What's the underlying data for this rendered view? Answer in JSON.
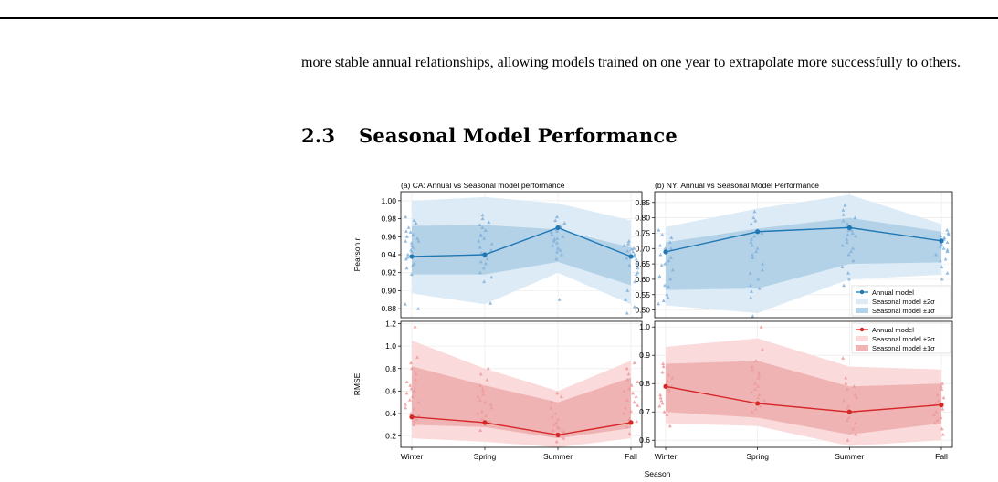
{
  "body_text": "more stable annual relationships, allowing models trained on one year to extrapolate more successfully to others.",
  "section": {
    "number": "2.3",
    "title": "Seasonal Model Performance"
  },
  "figure": {
    "shared_xlabel": "Season"
  },
  "colors": {
    "blue": "#1f77b4",
    "blue_band2": "#dcebf6",
    "blue_band1": "#b3d2e8",
    "blue_scatter": "#82b1d9",
    "red": "#d62728",
    "red_band2": "#fadadb",
    "red_band1": "#f0b3b4",
    "red_scatter": "#ec9a9b"
  },
  "chart_data": [
    {
      "type": "line",
      "title": "(a) CA: Annual vs Seasonal model performance",
      "xlabel": "",
      "ylabel": "Pearson r",
      "categories": [
        "Winter",
        "Spring",
        "Summer",
        "Fall"
      ],
      "ylim": [
        0.87,
        1.01
      ],
      "yticks": [
        0.88,
        0.9,
        0.92,
        0.94,
        0.96,
        0.98,
        1.0
      ],
      "tick_decimals": 2,
      "color": "blue",
      "series": [
        {
          "values": [
            0.938,
            0.94,
            0.97,
            0.938
          ]
        }
      ],
      "band2": {
        "lower": [
          0.897,
          0.885,
          0.92,
          0.885
        ],
        "upper": [
          1.0,
          1.004,
          0.997,
          0.978
        ]
      },
      "band1": {
        "lower": [
          0.918,
          0.918,
          0.932,
          0.906
        ],
        "upper": [
          0.972,
          0.973,
          0.968,
          0.948
        ]
      },
      "scatter": [
        [
          0.918,
          0.928,
          0.935,
          0.94,
          0.945,
          0.95,
          0.955,
          0.958,
          0.962,
          0.965,
          0.97,
          0.975,
          0.978,
          0.982,
          0.943,
          0.937,
          0.93,
          0.925,
          0.948,
          0.953,
          0.96,
          0.885,
          0.88,
          0.955,
          0.966
        ],
        [
          0.91,
          0.915,
          0.92,
          0.925,
          0.93,
          0.935,
          0.942,
          0.948,
          0.952,
          0.958,
          0.962,
          0.967,
          0.97,
          0.973,
          0.976,
          0.98,
          0.984,
          0.955,
          0.945,
          0.932,
          0.886,
          0.938,
          0.961
        ],
        [
          0.89,
          0.935,
          0.94,
          0.945,
          0.95,
          0.955,
          0.958,
          0.962,
          0.965,
          0.968,
          0.97,
          0.972,
          0.975,
          0.978,
          0.982,
          0.947,
          0.953,
          0.96,
          0.966,
          0.943,
          0.957
        ],
        [
          0.875,
          0.882,
          0.89,
          0.9,
          0.91,
          0.918,
          0.925,
          0.93,
          0.935,
          0.94,
          0.943,
          0.946,
          0.95,
          0.952,
          0.955,
          0.936,
          0.928,
          0.947,
          0.938,
          0.944,
          0.92
        ]
      ],
      "legend": null
    },
    {
      "type": "line",
      "title": "(b) NY: Annual vs Seasonal Model Performance",
      "xlabel": "",
      "ylabel": "",
      "categories": [
        "Winter",
        "Spring",
        "Summer",
        "Fall"
      ],
      "ylim": [
        0.475,
        0.885
      ],
      "yticks": [
        0.5,
        0.55,
        0.6,
        0.65,
        0.7,
        0.75,
        0.8,
        0.85
      ],
      "tick_decimals": 2,
      "color": "blue",
      "series": [
        {
          "name": "Annual model",
          "values": [
            0.689,
            0.755,
            0.768,
            0.725
          ]
        }
      ],
      "band2": {
        "lower": [
          0.515,
          0.49,
          0.6,
          0.615
        ],
        "upper": [
          0.77,
          0.83,
          0.875,
          0.78
        ]
      },
      "band1": {
        "lower": [
          0.565,
          0.57,
          0.65,
          0.655
        ],
        "upper": [
          0.72,
          0.765,
          0.8,
          0.755
        ]
      },
      "scatter": [
        [
          0.52,
          0.53,
          0.55,
          0.58,
          0.61,
          0.63,
          0.65,
          0.67,
          0.69,
          0.7,
          0.71,
          0.72,
          0.735,
          0.745,
          0.76,
          0.68,
          0.66,
          0.575,
          0.54,
          0.7,
          0.645,
          0.6
        ],
        [
          0.48,
          0.54,
          0.56,
          0.58,
          0.6,
          0.63,
          0.65,
          0.68,
          0.7,
          0.72,
          0.74,
          0.76,
          0.78,
          0.79,
          0.8,
          0.82,
          0.75,
          0.71,
          0.67,
          0.62,
          0.57,
          0.73,
          0.69
        ],
        [
          0.58,
          0.6,
          0.62,
          0.64,
          0.66,
          0.68,
          0.7,
          0.72,
          0.74,
          0.75,
          0.76,
          0.77,
          0.78,
          0.79,
          0.8,
          0.81,
          0.825,
          0.84,
          0.73,
          0.71,
          0.69,
          0.76,
          0.745
        ],
        [
          0.6,
          0.62,
          0.64,
          0.66,
          0.68,
          0.69,
          0.7,
          0.71,
          0.72,
          0.73,
          0.74,
          0.75,
          0.76,
          0.705,
          0.715,
          0.735,
          0.665,
          0.695,
          0.725,
          0.745
        ]
      ],
      "legend": {
        "entries": [
          "Annual model",
          "Seasonal model ±2σ",
          "Seasonal model ±1σ"
        ],
        "placement": "bottom-right"
      }
    },
    {
      "type": "line",
      "title": "",
      "xlabel": "",
      "ylabel": "RMSE",
      "categories": [
        "Winter",
        "Spring",
        "Summer",
        "Fall"
      ],
      "ylim": [
        0.1,
        1.22
      ],
      "yticks": [
        0.2,
        0.4,
        0.6,
        0.8,
        1.0,
        1.2
      ],
      "tick_decimals": 1,
      "color": "red",
      "series": [
        {
          "values": [
            0.37,
            0.32,
            0.21,
            0.32
          ]
        }
      ],
      "band2": {
        "lower": [
          0.18,
          0.15,
          0.1,
          0.18
        ],
        "upper": [
          1.05,
          0.8,
          0.6,
          0.87
        ]
      },
      "band1": {
        "lower": [
          0.3,
          0.28,
          0.18,
          0.27
        ],
        "upper": [
          0.82,
          0.65,
          0.5,
          0.72
        ]
      },
      "scatter": [
        [
          0.3,
          0.35,
          0.4,
          0.45,
          0.5,
          0.55,
          0.6,
          0.65,
          0.7,
          0.75,
          0.8,
          0.85,
          0.9,
          1.17,
          0.48,
          0.52,
          0.62,
          0.38,
          0.44,
          0.58,
          0.33,
          0.68
        ],
        [
          0.25,
          0.3,
          0.35,
          0.4,
          0.45,
          0.5,
          0.55,
          0.6,
          0.65,
          0.7,
          0.75,
          0.8,
          0.42,
          0.48,
          0.38,
          0.57,
          0.33,
          0.52,
          0.62
        ],
        [
          0.15,
          0.18,
          0.2,
          0.22,
          0.25,
          0.28,
          0.3,
          0.32,
          0.35,
          0.4,
          0.45,
          0.5,
          0.55,
          0.58,
          0.27,
          0.24,
          0.37
        ],
        [
          0.22,
          0.28,
          0.35,
          0.4,
          0.45,
          0.5,
          0.55,
          0.6,
          0.65,
          0.7,
          0.75,
          0.8,
          0.85,
          0.42,
          0.52,
          0.58,
          0.33,
          0.47,
          0.62,
          0.68
        ]
      ],
      "legend": null
    },
    {
      "type": "line",
      "title": "",
      "xlabel": "",
      "ylabel": "",
      "categories": [
        "Winter",
        "Spring",
        "Summer",
        "Fall"
      ],
      "ylim": [
        0.575,
        1.02
      ],
      "yticks": [
        0.6,
        0.7,
        0.8,
        0.9,
        1.0
      ],
      "tick_decimals": 1,
      "color": "red",
      "series": [
        {
          "name": "Annual model",
          "values": [
            0.79,
            0.73,
            0.7,
            0.725
          ]
        }
      ],
      "band2": {
        "lower": [
          0.66,
          0.65,
          0.58,
          0.6
        ],
        "upper": [
          0.93,
          0.96,
          0.86,
          0.85
        ]
      },
      "band1": {
        "lower": [
          0.7,
          0.68,
          0.62,
          0.66
        ],
        "upper": [
          0.87,
          0.88,
          0.79,
          0.8
        ]
      },
      "scatter": [
        [
          0.65,
          0.7,
          0.72,
          0.74,
          0.76,
          0.78,
          0.8,
          0.82,
          0.84,
          0.86,
          0.87,
          0.75,
          0.79,
          0.81,
          0.77,
          0.83,
          0.73,
          0.69
        ],
        [
          0.7,
          0.72,
          0.74,
          0.76,
          0.78,
          0.8,
          0.82,
          0.84,
          0.86,
          0.88,
          0.92,
          1.0,
          0.75,
          0.79,
          0.83,
          0.71,
          0.77,
          0.85
        ],
        [
          0.6,
          0.62,
          0.64,
          0.66,
          0.68,
          0.7,
          0.72,
          0.74,
          0.76,
          0.78,
          0.8,
          0.82,
          0.89,
          0.67,
          0.71,
          0.75,
          0.79
        ],
        [
          0.62,
          0.64,
          0.66,
          0.68,
          0.7,
          0.72,
          0.74,
          0.76,
          0.78,
          0.8,
          0.67,
          0.71,
          0.75,
          0.79,
          0.73,
          0.69
        ]
      ],
      "legend": {
        "entries": [
          "Annual model",
          "Seasonal model ±2σ",
          "Seasonal model ±1σ"
        ],
        "placement": "top-right"
      }
    }
  ]
}
